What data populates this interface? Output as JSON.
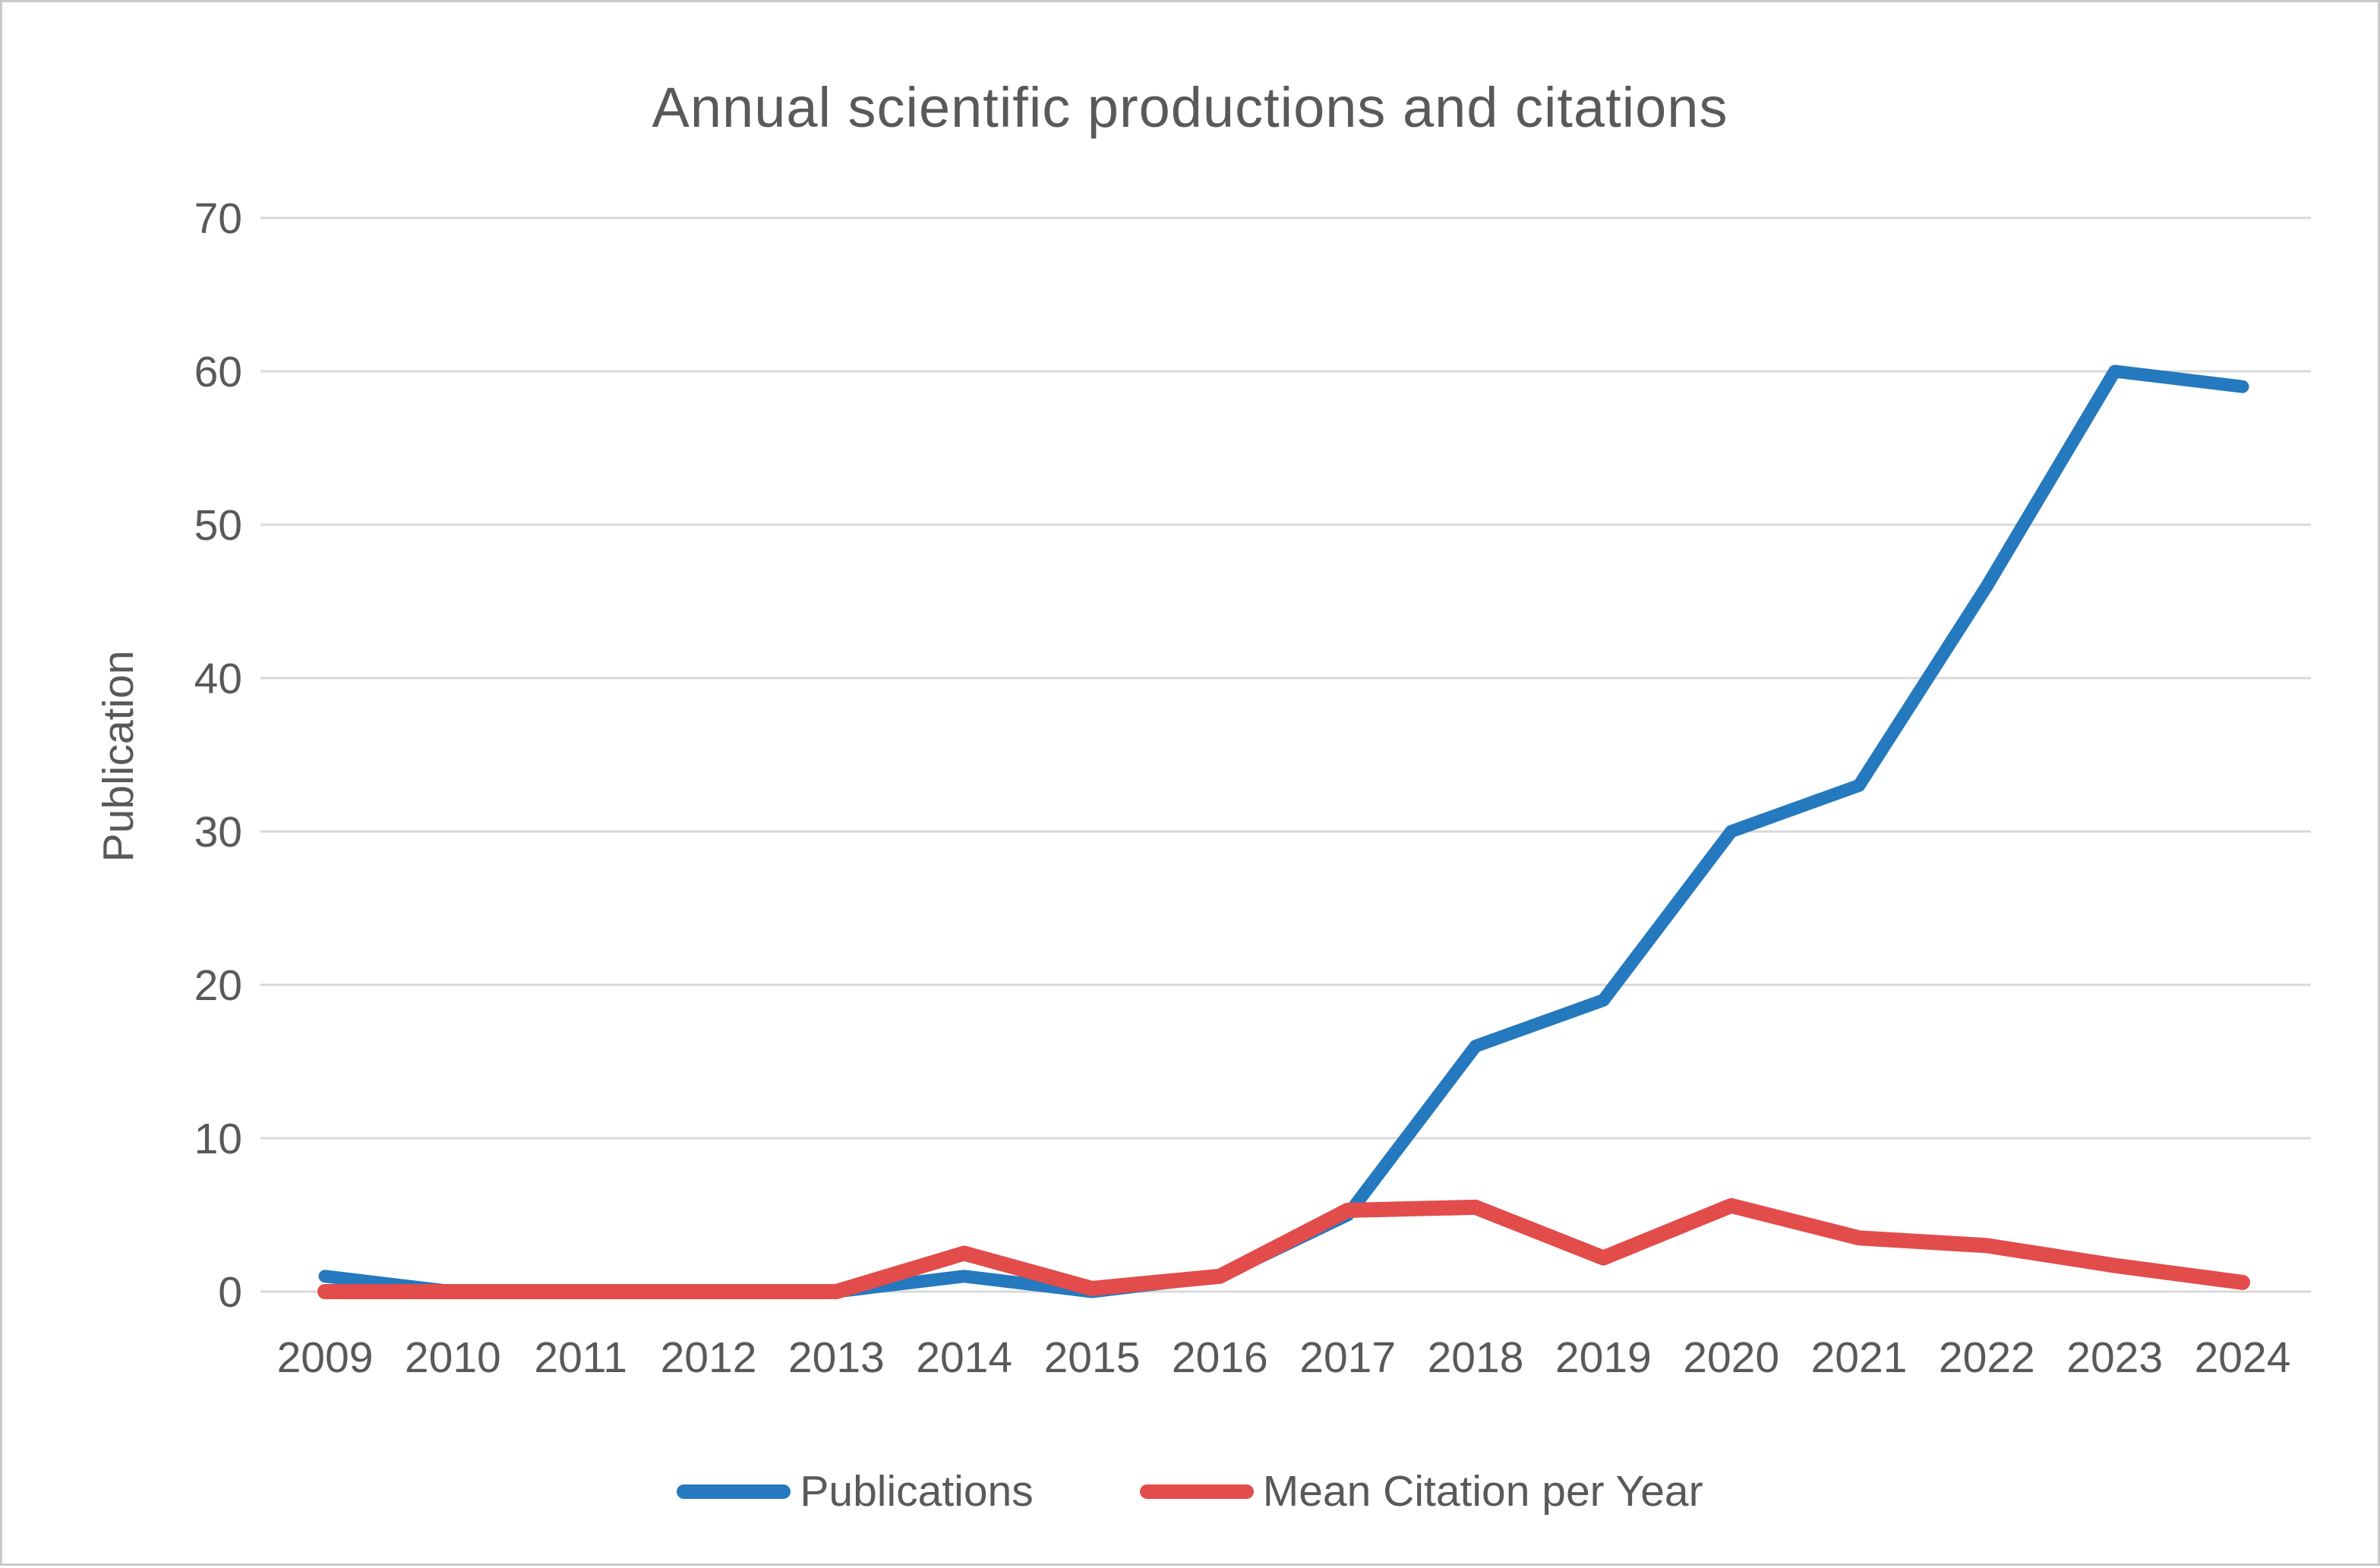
{
  "figure": {
    "background": "#ffffff",
    "border_color": "#c9c9c9"
  },
  "chart_data": {
    "type": "line",
    "title": "Annual scientific productions and citations",
    "xlabel": "",
    "ylabel": "Publication",
    "categories": [
      "2009",
      "2010",
      "2011",
      "2012",
      "2013",
      "2014",
      "2015",
      "2016",
      "2017",
      "2018",
      "2019",
      "2020",
      "2021",
      "2022",
      "2023",
      "2024"
    ],
    "series": [
      {
        "name": "Publications",
        "color": "#2579BE",
        "values": [
          1,
          0,
          0,
          0,
          0,
          1,
          0,
          1,
          5,
          16,
          19,
          30,
          33,
          46,
          60,
          59
        ]
      },
      {
        "name": "Mean Citation per Year",
        "color": "#E24C4B",
        "values": [
          0,
          0,
          0,
          0,
          0,
          2.5,
          0.2,
          1,
          5.3,
          5.5,
          2.2,
          5.6,
          3.5,
          3,
          1.7,
          0.6
        ]
      }
    ],
    "ylim": [
      0,
      70
    ],
    "yticks": [
      0,
      10,
      20,
      30,
      40,
      50,
      60,
      70
    ],
    "grid": true,
    "gridline_color": "#D9D9D9",
    "text_color": "#595959",
    "legend_position": "bottom"
  }
}
